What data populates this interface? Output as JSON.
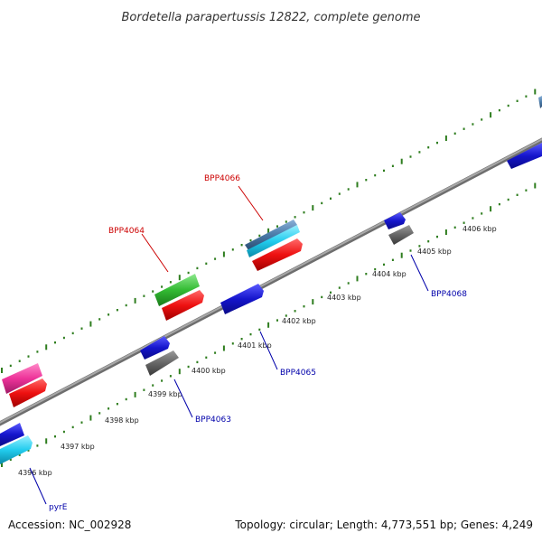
{
  "title": "Bordetella parapertussis 12822, complete genome",
  "footer": {
    "accession": "Accession: NC_002928",
    "topology": "Topology: circular; Length: 4,773,551 bp; Genes: 4,249"
  },
  "scale_labels": [
    "4396 kbp",
    "4397 kbp",
    "4398 kbp",
    "4399 kbp",
    "4400 kbp",
    "4401 kbp",
    "4402 kbp",
    "4403 kbp",
    "4404 kbp",
    "4405 kbp",
    "4406 kbp"
  ],
  "genes": [
    {
      "id": "BPP4066",
      "label": "BPP4066",
      "strand": "forward",
      "color": "#cc0000"
    },
    {
      "id": "BPP4064",
      "label": "BPP4064",
      "strand": "forward",
      "color": "#cc0000"
    },
    {
      "id": "BPP4068",
      "label": "BPP4068",
      "strand": "reverse",
      "color": "#0000aa"
    },
    {
      "id": "BPP4065",
      "label": "BPP4065",
      "strand": "reverse",
      "color": "#0000aa"
    },
    {
      "id": "BPP4063",
      "label": "BPP4063",
      "strand": "reverse",
      "color": "#0000aa"
    },
    {
      "id": "pyrE",
      "label": "pyrE",
      "strand": "reverse",
      "color": "#0000aa"
    }
  ],
  "colors": {
    "backbone": "#8c8c8c",
    "tick": "#2e7d1e",
    "cds_blue": "#1515cc",
    "cds_gray": "#666666",
    "cds_red": "#ee1111",
    "cds_green": "#33bb33",
    "cds_pink": "#ee3399",
    "cds_cyan": "#22ccee",
    "cds_steel": "#4a7aa8"
  }
}
